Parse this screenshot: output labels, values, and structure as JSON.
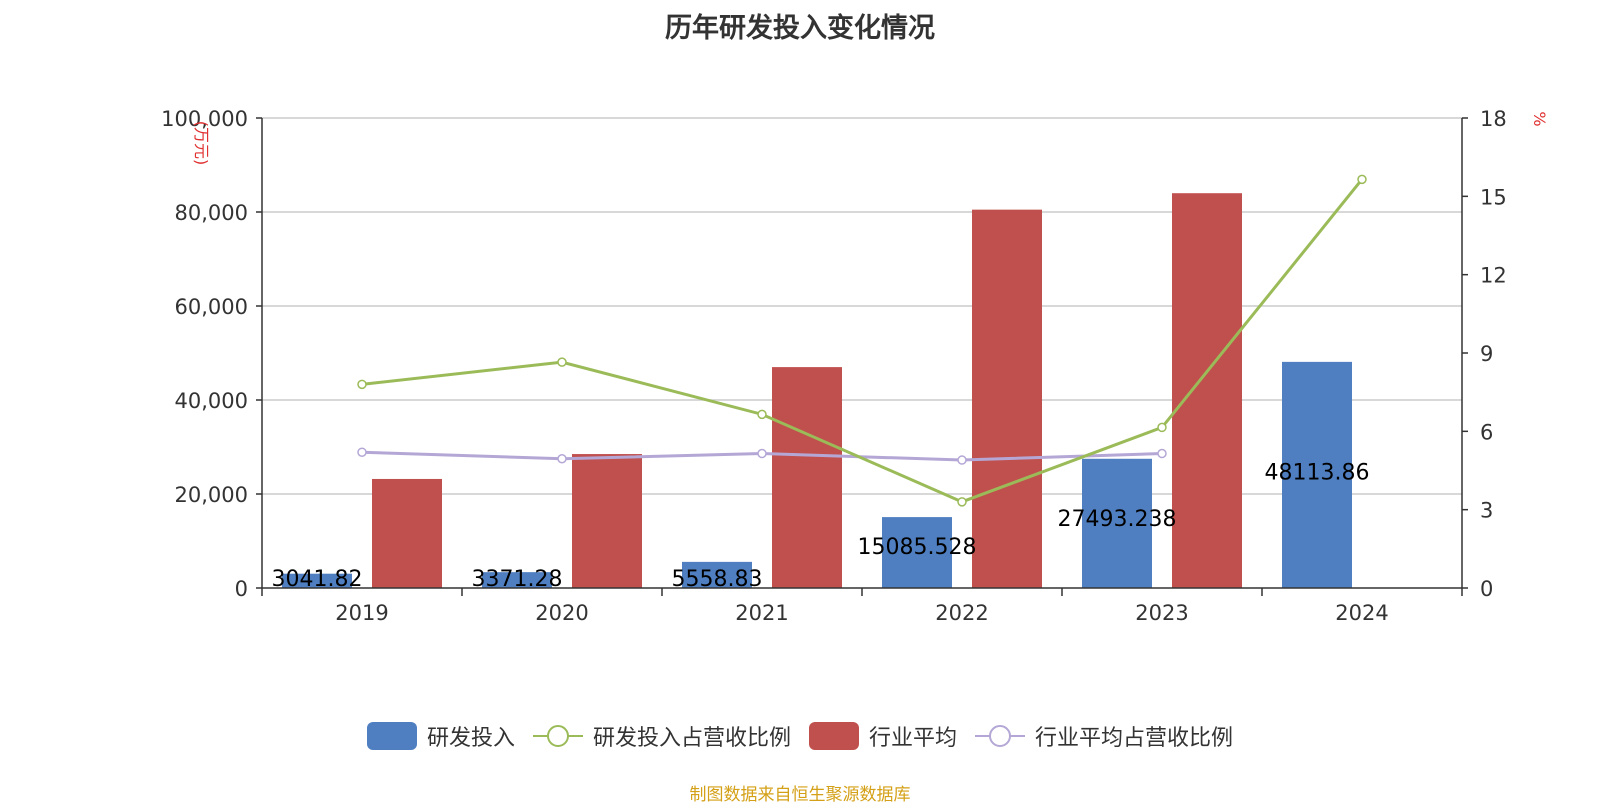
{
  "title": "历年研发投入变化情况",
  "source_note": "制图数据来自恒生聚源数据库",
  "colors": {
    "rd_bar": "#4f7fc0",
    "industry_bar": "#c0504d",
    "rd_ratio_line": "#9bbb59",
    "industry_ratio_line": "#b4a7d6",
    "grid": "#cccccc",
    "axis": "#333333"
  },
  "chart_data": {
    "type": "bar",
    "title": "历年研发投入变化情况",
    "categories": [
      "2019",
      "2020",
      "2021",
      "2022",
      "2023",
      "2024"
    ],
    "y_left": {
      "unit": "(万元)",
      "min": 0,
      "max": 100000,
      "ticks": [
        "0",
        "20,000",
        "40,000",
        "60,000",
        "80,000",
        "100,000"
      ],
      "tick_values": [
        0,
        20000,
        40000,
        60000,
        80000,
        100000
      ]
    },
    "y_right": {
      "unit": "%",
      "min": 0,
      "max": 18,
      "ticks": [
        "0",
        "3",
        "6",
        "9",
        "12",
        "15",
        "18"
      ],
      "tick_values": [
        0,
        3,
        6,
        9,
        12,
        15,
        18
      ]
    },
    "series": [
      {
        "name": "研发投入",
        "kind": "bar",
        "axis": "left",
        "values": [
          3041.82,
          3371.28,
          5558.83,
          15085.528,
          27493.238,
          48113.86
        ],
        "labels": [
          "3041.82",
          "3371.28",
          "5558.83",
          "15085.528",
          "27493.238",
          "48113.86"
        ]
      },
      {
        "name": "研发投入占营收比例",
        "kind": "line",
        "axis": "right",
        "values": [
          7.8,
          8.65,
          6.65,
          3.3,
          6.15,
          15.65
        ]
      },
      {
        "name": "行业平均",
        "kind": "bar",
        "axis": "left",
        "values": [
          23200,
          28500,
          47000,
          80500,
          84000,
          null
        ]
      },
      {
        "name": "行业平均占营收比例",
        "kind": "line",
        "axis": "right",
        "values": [
          5.2,
          4.95,
          5.15,
          4.9,
          5.15,
          null
        ]
      }
    ],
    "grid": true,
    "legend_position": "bottom"
  },
  "legend": [
    {
      "label": "研发投入",
      "icon": "bar-swatch"
    },
    {
      "label": "研发投入占营收比例",
      "icon": "line-circle-swatch"
    },
    {
      "label": "行业平均",
      "icon": "bar-swatch"
    },
    {
      "label": "行业平均占营收比例",
      "icon": "line-circle-swatch"
    }
  ]
}
